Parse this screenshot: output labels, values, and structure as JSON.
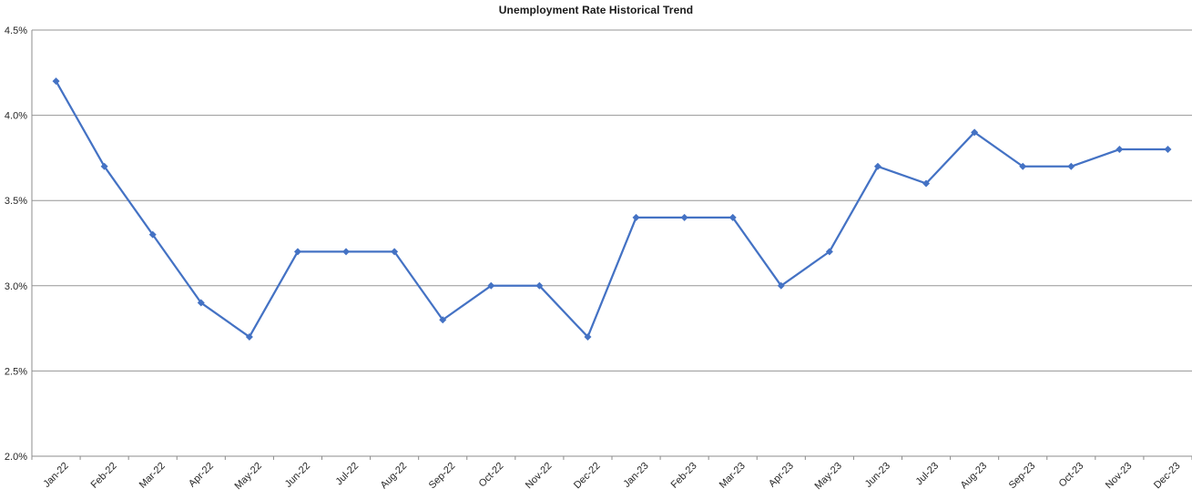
{
  "chart_data": {
    "type": "line",
    "title": "Unemployment Rate Historical Trend",
    "categories": [
      "Jan-22",
      "Feb-22",
      "Mar-22",
      "Apr-22",
      "May-22",
      "Jun-22",
      "Jul-22",
      "Aug-22",
      "Sep-22",
      "Oct-22",
      "Nov-22",
      "Dec-22",
      "Jan-23",
      "Feb-23",
      "Mar-23",
      "Apr-23",
      "May-23",
      "Jun-23",
      "Jul-23",
      "Aug-23",
      "Sep-23",
      "Oct-23",
      "Nov-23",
      "Dec-23"
    ],
    "series": [
      {
        "name": "Unemployment Rate",
        "values": [
          4.2,
          3.7,
          3.3,
          2.9,
          2.7,
          3.2,
          3.2,
          3.2,
          2.8,
          3.0,
          3.0,
          2.7,
          3.4,
          3.4,
          3.4,
          3.0,
          3.2,
          3.7,
          3.6,
          3.9,
          3.7,
          3.7,
          3.8,
          3.8
        ]
      }
    ],
    "xlabel": "",
    "ylabel": "",
    "ylim": [
      2.0,
      4.5
    ],
    "ytick_step": 0.5,
    "ytick_labels": [
      "2.0%",
      "2.5%",
      "3.0%",
      "3.5%",
      "4.0%",
      "4.5%"
    ],
    "grid": true,
    "legend_position": "none",
    "marker_shape": "diamond",
    "colors": {
      "line": "#4472C4",
      "marker": "#4472C4",
      "gridline": "#969696",
      "axis": "#8C8C8C",
      "title": "#1A1A1A",
      "tick_label": "#262626",
      "background": "#FFFFFF"
    }
  }
}
